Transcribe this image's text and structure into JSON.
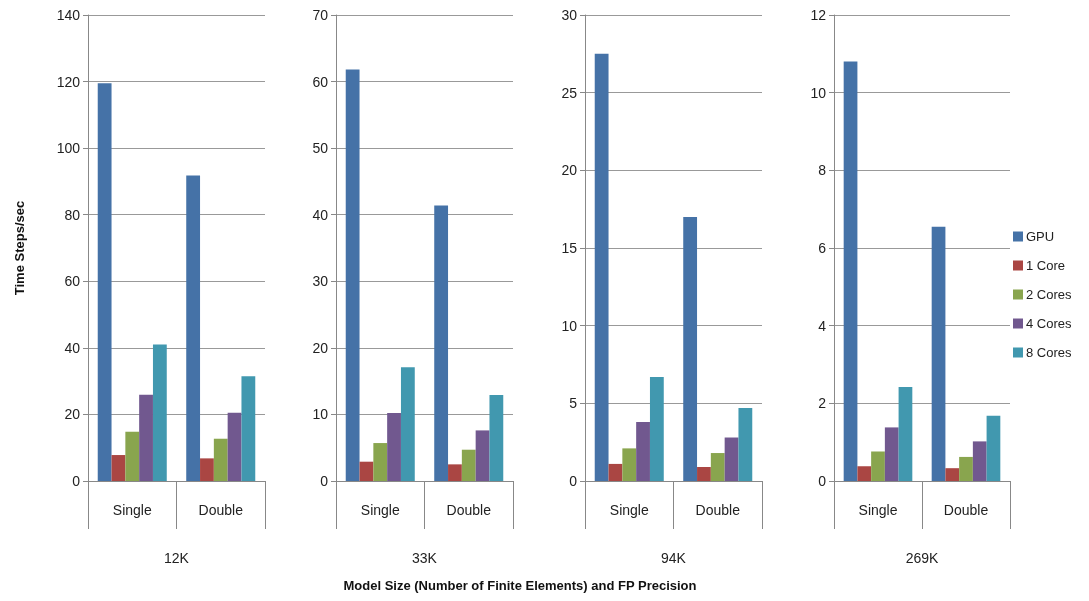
{
  "chart_data": [
    {
      "type": "bar",
      "xlabel": "12K",
      "ylabel": "Time Steps/sec",
      "categories": [
        "Single",
        "Double"
      ],
      "ylim": [
        0,
        140
      ],
      "yticks": [
        0,
        20,
        40,
        60,
        80,
        100,
        120,
        140
      ],
      "grid": "y",
      "legend": false,
      "annotations": [
        "Model Size (Number of Finite Elements) and FP Precision"
      ],
      "series": [
        {
          "color": "#4572a7",
          "values": [
            119.5,
            91.8
          ]
        },
        {
          "color": "#aa4643",
          "values": [
            7.8,
            6.8
          ]
        },
        {
          "color": "#89a54e",
          "values": [
            14.8,
            12.7
          ]
        },
        {
          "color": "#71588f",
          "values": [
            25.9,
            20.5
          ]
        },
        {
          "color": "#4198af",
          "values": [
            41,
            31.5
          ]
        }
      ]
    },
    {
      "type": "bar",
      "xlabel": "33K",
      "categories": [
        "Single",
        "Double"
      ],
      "ylim": [
        0,
        70
      ],
      "yticks": [
        0,
        10,
        20,
        30,
        40,
        50,
        60,
        70
      ],
      "grid": "y",
      "legend": false,
      "series": [
        {
          "color": "#4572a7",
          "values": [
            61.8,
            41.4
          ]
        },
        {
          "color": "#aa4643",
          "values": [
            2.9,
            2.5
          ]
        },
        {
          "color": "#89a54e",
          "values": [
            5.7,
            4.7
          ]
        },
        {
          "color": "#71588f",
          "values": [
            10.2,
            7.6
          ]
        },
        {
          "color": "#4198af",
          "values": [
            17.1,
            12.9
          ]
        }
      ]
    },
    {
      "type": "bar",
      "xlabel": "94K",
      "categories": [
        "Single",
        "Double"
      ],
      "ylim": [
        0,
        30
      ],
      "yticks": [
        0,
        5,
        10,
        15,
        20,
        25,
        30
      ],
      "grid": "y",
      "legend": false,
      "series": [
        {
          "color": "#4572a7",
          "values": [
            27.5,
            17
          ]
        },
        {
          "color": "#aa4643",
          "values": [
            1.1,
            0.9
          ]
        },
        {
          "color": "#89a54e",
          "values": [
            2.1,
            1.8
          ]
        },
        {
          "color": "#71588f",
          "values": [
            3.8,
            2.8
          ]
        },
        {
          "color": "#4198af",
          "values": [
            6.7,
            4.7
          ]
        }
      ]
    },
    {
      "type": "bar",
      "xlabel": "269K",
      "categories": [
        "Single",
        "Double"
      ],
      "ylim": [
        0,
        12
      ],
      "yticks": [
        0,
        2,
        4,
        6,
        8,
        10,
        12
      ],
      "grid": "y",
      "legend": "right",
      "series": [
        {
          "name": "GPU",
          "color": "#4572a7",
          "values": [
            10.8,
            6.55
          ]
        },
        {
          "name": "1 Core",
          "color": "#aa4643",
          "values": [
            0.38,
            0.33
          ]
        },
        {
          "name": "2 Cores",
          "color": "#89a54e",
          "values": [
            0.76,
            0.62
          ]
        },
        {
          "name": "4 Cores",
          "color": "#71588f",
          "values": [
            1.38,
            1.02
          ]
        },
        {
          "name": "8 Cores",
          "color": "#4198af",
          "values": [
            2.42,
            1.68
          ]
        }
      ]
    }
  ]
}
